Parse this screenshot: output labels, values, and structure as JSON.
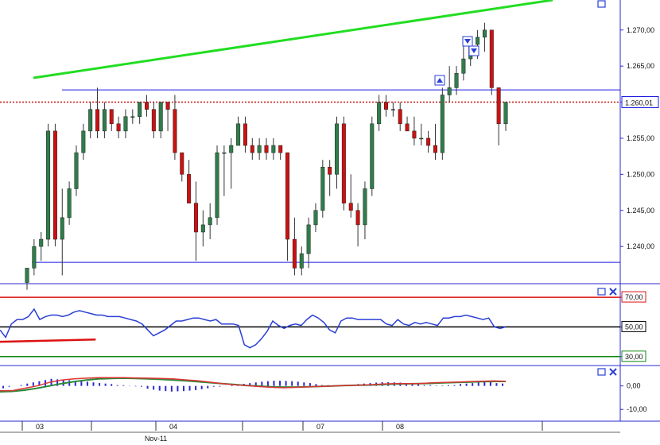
{
  "chart_data": {
    "type": "candlestick",
    "price_panel": {
      "y_ticks": [
        "1.270,00",
        "1.265,00",
        "1.260,00",
        "1.255,00",
        "1.250,00",
        "1.245,00",
        "1.240,00"
      ],
      "y_tick_values": [
        1270,
        1265,
        1260,
        1255,
        1250,
        1245,
        1240
      ],
      "ylim": [
        1235.5,
        1273.5
      ],
      "current_price_label": "1.260,01",
      "current_price": 1260.01,
      "resistance_level": 1261.7,
      "support_level": 1237.8,
      "candles": [
        [
          1235,
          1237,
          1234,
          1237
        ],
        [
          1237,
          1241,
          1236,
          1240
        ],
        [
          1240,
          1242,
          1238,
          1241
        ],
        [
          1241,
          1257,
          1240,
          1256
        ],
        [
          1256,
          1257,
          1240,
          1241
        ],
        [
          1241,
          1248,
          1236,
          1244
        ],
        [
          1244,
          1249,
          1243,
          1248
        ],
        [
          1248,
          1254,
          1247,
          1253
        ],
        [
          1253,
          1257,
          1252,
          1256
        ],
        [
          1256,
          1260,
          1255,
          1259
        ],
        [
          1259,
          1262,
          1255,
          1256
        ],
        [
          1256,
          1260,
          1255,
          1259
        ],
        [
          1259,
          1259,
          1256,
          1257
        ],
        [
          1257,
          1258,
          1255,
          1256
        ],
        [
          1256,
          1259,
          1255,
          1258
        ],
        [
          1258,
          1259,
          1257,
          1258
        ],
        [
          1258,
          1260,
          1257,
          1260
        ],
        [
          1260,
          1261,
          1258,
          1259
        ],
        [
          1259,
          1260,
          1255,
          1256
        ],
        [
          1256,
          1260,
          1255,
          1260
        ],
        [
          1260,
          1260,
          1256,
          1259
        ],
        [
          1259,
          1261,
          1252,
          1253
        ],
        [
          1253,
          1253,
          1249,
          1250
        ],
        [
          1250,
          1252,
          1246,
          1246
        ],
        [
          1246,
          1249,
          1238,
          1242
        ],
        [
          1242,
          1245,
          1240,
          1243
        ],
        [
          1243,
          1246,
          1241,
          1244
        ],
        [
          1244,
          1254,
          1243,
          1253
        ],
        [
          1253,
          1254,
          1247,
          1253
        ],
        [
          1253,
          1255,
          1248,
          1254
        ],
        [
          1254,
          1258,
          1254,
          1257
        ],
        [
          1257,
          1258,
          1253,
          1254
        ],
        [
          1254,
          1255,
          1252,
          1253
        ],
        [
          1253,
          1255,
          1252,
          1254
        ],
        [
          1254,
          1255,
          1252,
          1253
        ],
        [
          1253,
          1255,
          1252,
          1254
        ],
        [
          1254,
          1254,
          1252,
          1253
        ],
        [
          1253,
          1253,
          1238,
          1241
        ],
        [
          1241,
          1244,
          1236,
          1237
        ],
        [
          1237,
          1240,
          1236,
          1239
        ],
        [
          1239,
          1244,
          1237,
          1243
        ],
        [
          1243,
          1246,
          1242,
          1245
        ],
        [
          1245,
          1252,
          1244,
          1251
        ],
        [
          1251,
          1252,
          1247,
          1250
        ],
        [
          1250,
          1258,
          1248,
          1257
        ],
        [
          1257,
          1258,
          1245,
          1246
        ],
        [
          1246,
          1250,
          1244,
          1245
        ],
        [
          1245,
          1246,
          1240,
          1243
        ],
        [
          1243,
          1249,
          1241,
          1248
        ],
        [
          1248,
          1258,
          1247,
          1257
        ],
        [
          1257,
          1261,
          1256,
          1260
        ],
        [
          1260,
          1261,
          1258,
          1259
        ],
        [
          1259,
          1260,
          1258,
          1259
        ],
        [
          1259,
          1260,
          1256,
          1257
        ],
        [
          1257,
          1258,
          1256,
          1256
        ],
        [
          1256,
          1258,
          1254,
          1255
        ],
        [
          1255,
          1257,
          1254,
          1255
        ],
        [
          1255,
          1256,
          1253,
          1254
        ],
        [
          1254,
          1257,
          1252,
          1253
        ],
        [
          1253,
          1262,
          1252,
          1261
        ],
        [
          1261,
          1265,
          1260,
          1262
        ],
        [
          1262,
          1265,
          1261,
          1264
        ],
        [
          1264,
          1268,
          1263,
          1266
        ],
        [
          1266,
          1269,
          1265,
          1268
        ],
        [
          1268,
          1270,
          1266,
          1269
        ],
        [
          1269,
          1271,
          1267,
          1270
        ],
        [
          1270,
          1270,
          1261,
          1262
        ],
        [
          1262,
          1262,
          1254,
          1257
        ],
        [
          1257,
          1260,
          1256,
          1260
        ]
      ]
    },
    "rsi_panel": {
      "y_ticks": [
        "70,00",
        "50,00",
        "30,00"
      ],
      "y_tick_values": [
        70,
        50,
        30
      ],
      "ylim": [
        24,
        77
      ],
      "upper_level": 70,
      "mid_level": 50,
      "lower_level": 30,
      "values": [
        48,
        43,
        52,
        55,
        55,
        57,
        62,
        55,
        57,
        58,
        58,
        57,
        58,
        60,
        61,
        60,
        59,
        58,
        58,
        57,
        57,
        57,
        56,
        55,
        54,
        52,
        48,
        44,
        46,
        48,
        51,
        54,
        54,
        55,
        56,
        56,
        55,
        54,
        55,
        52,
        52,
        52,
        51,
        38,
        36,
        38,
        42,
        47,
        54,
        51,
        49,
        51,
        52,
        51,
        55,
        58,
        56,
        53,
        48,
        46,
        54,
        56,
        56,
        55,
        55,
        55,
        55,
        55,
        52,
        51,
        55,
        52,
        51,
        53,
        52,
        53,
        52,
        51,
        56,
        56,
        57,
        57,
        58,
        57,
        56,
        55,
        56,
        50,
        49,
        50
      ],
      "trendline": [
        [
          0,
          40
        ],
        [
          0.145,
          41.5
        ]
      ]
    },
    "macd_panel": {
      "y_ticks": [
        "0,00",
        "-10,00"
      ],
      "y_tick_values": [
        0,
        -10
      ],
      "ylim": [
        -15,
        8
      ],
      "macd": [
        -2,
        -2,
        -1,
        0,
        1.5,
        2.5,
        3,
        3.3,
        3.5,
        3.5,
        3.5,
        3.4,
        3.3,
        3.2,
        3,
        2.6,
        2.2,
        1.6,
        1,
        0.5,
        0.2,
        -0.3,
        -0.6,
        -0.8,
        -0.6,
        -0.4,
        -0.2,
        0,
        0.2,
        0.3,
        0.5,
        0.8,
        1,
        1,
        1,
        1.3,
        1.5,
        1.6,
        1.8,
        2,
        2.1,
        2
      ],
      "signal": [
        -2.5,
        -2.3,
        -1.8,
        -1,
        0,
        1,
        1.8,
        2.5,
        3,
        3.2,
        3.3,
        3.2,
        3,
        2.8,
        2.5,
        2.2,
        1.8,
        1.4,
        1,
        0.6,
        0.2,
        -0.1,
        -0.4,
        -0.5,
        -0.5,
        -0.4,
        -0.2,
        0,
        0.2,
        0.3,
        0.4,
        0.6,
        0.8,
        0.9,
        1,
        1.1,
        1.3,
        1.5,
        1.6,
        1.8,
        1.9,
        1.9
      ],
      "histogram": [
        -1,
        -0.5,
        0,
        0.5,
        1,
        1.5,
        2,
        2.5,
        3,
        2.8,
        2.6,
        2.4,
        2.2,
        2,
        1.8,
        1.5,
        1.2,
        1,
        0.8,
        0.5,
        0.3,
        0.1,
        -0.2,
        -0.6,
        -1.2,
        -1.6,
        -2,
        -2.2,
        -2.4,
        -2.3,
        -2.2,
        -2,
        -1.8,
        -1.4,
        -1,
        -0.6,
        -0.3,
        0,
        0.3,
        0.6,
        0.9,
        1.2,
        1.5,
        1.8,
        2,
        2.2,
        2.2,
        2.1,
        2,
        1.8,
        1.5,
        1.2,
        0.8,
        0.6,
        0.4,
        0.3,
        0.2,
        0.4,
        0.6,
        0.8,
        1,
        1.2,
        1.4,
        1.6,
        1.6,
        1.5,
        1.4,
        1.2,
        1,
        0.8,
        0.6,
        0.4,
        0.2,
        0.2,
        0.4,
        0.6,
        0.8,
        1,
        1.2,
        1.5,
        1.8,
        1.6,
        1.2,
        1
      ]
    },
    "x_ticks": [
      "03",
      "04",
      "07",
      "08"
    ],
    "month_label": "Nov-11"
  },
  "colors": {
    "bull": "#2e7d4a",
    "bear": "#cc1111",
    "wick": "#333333",
    "support": "#1a1ae6",
    "current": "#cc1111",
    "trend": "#22dd22",
    "rsi_line": "#2a3fd6",
    "rsi_upper": "#dd1111",
    "rsi_mid": "#000000",
    "rsi_lower": "#118811",
    "rsi_trend": "#dd1111",
    "macd": "#dd3333",
    "signal": "#2a8a3a",
    "hist": "#2a2ad0",
    "frame": "#2a2ad0"
  },
  "icons": [
    "maximize-icon",
    "close-icon",
    "sell-signal-icon",
    "buy-signal-icon"
  ]
}
